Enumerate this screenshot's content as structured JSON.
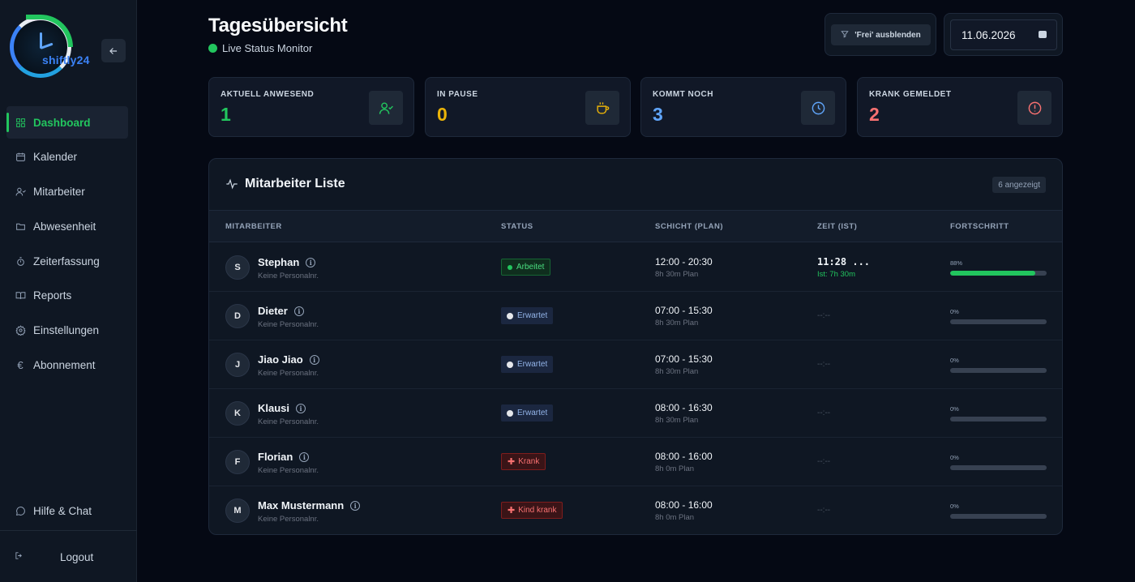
{
  "app": {
    "logo_text": "shiftly24",
    "collapse_icon": "arrow-left-icon"
  },
  "sidebar": {
    "items": [
      {
        "label": "Dashboard",
        "icon": "grid-icon",
        "active": true
      },
      {
        "label": "Kalender",
        "icon": "calendar-icon",
        "active": false
      },
      {
        "label": "Mitarbeiter",
        "icon": "users-icon",
        "active": false
      },
      {
        "label": "Abwesenheit",
        "icon": "folder-icon",
        "active": false
      },
      {
        "label": "Zeiterfassung",
        "icon": "stopwatch-icon",
        "active": false
      },
      {
        "label": "Reports",
        "icon": "book-icon",
        "active": false
      },
      {
        "label": "Einstellungen",
        "icon": "gear-icon",
        "active": false
      },
      {
        "label": "Abonnement",
        "icon": "euro-icon",
        "active": false
      }
    ],
    "help": {
      "label": "Hilfe & Chat",
      "icon": "chat-icon"
    },
    "logout": {
      "label": "Logout",
      "icon": "logout-icon"
    }
  },
  "header": {
    "title": "Tagesübersicht",
    "subtitle": "Live Status Monitor",
    "filter_label": "'Frei' ausblenden",
    "date_value": "11.06.2026"
  },
  "stats": [
    {
      "label": "AKTUELL ANWESEND",
      "value": "1",
      "color": "#22c55e",
      "icon": "user-check-icon"
    },
    {
      "label": "IN PAUSE",
      "value": "0",
      "color": "#eab308",
      "icon": "coffee-icon"
    },
    {
      "label": "KOMMT NOCH",
      "value": "3",
      "color": "#60a5fa",
      "icon": "clock-icon"
    },
    {
      "label": "KRANK GEMELDET",
      "value": "2",
      "color": "#f87171",
      "icon": "alert-circle-icon"
    }
  ],
  "table": {
    "title": "Mitarbeiter Liste",
    "count_badge": "6 angezeigt",
    "columns": [
      "MITARBEITER",
      "STATUS",
      "SCHICHT (PLAN)",
      "ZEIT (IST)",
      "FORTSCHRITT"
    ],
    "rows": [
      {
        "initial": "S",
        "name": "Stephan",
        "personal_nr": "Keine Personalnr.",
        "status": "Arbeitet",
        "status_type": "working",
        "shift": "12:00 - 20:30",
        "plan": "8h 30m Plan",
        "time": "11:28 ...",
        "time_sub": "Ist: 7h 30m",
        "progress_label": "88%",
        "progress": 88
      },
      {
        "initial": "D",
        "name": "Dieter",
        "personal_nr": "Keine Personalnr.",
        "status": "Erwartet",
        "status_type": "expected",
        "shift": "07:00 - 15:30",
        "plan": "8h 30m Plan",
        "time": "--:--",
        "time_sub": "",
        "progress_label": "0%",
        "progress": 0
      },
      {
        "initial": "J",
        "name": "Jiao Jiao",
        "personal_nr": "Keine Personalnr.",
        "status": "Erwartet",
        "status_type": "expected",
        "shift": "07:00 - 15:30",
        "plan": "8h 30m Plan",
        "time": "--:--",
        "time_sub": "",
        "progress_label": "0%",
        "progress": 0
      },
      {
        "initial": "K",
        "name": "Klausi",
        "personal_nr": "Keine Personalnr.",
        "status": "Erwartet",
        "status_type": "expected",
        "shift": "08:00 - 16:30",
        "plan": "8h 30m Plan",
        "time": "--:--",
        "time_sub": "",
        "progress_label": "0%",
        "progress": 0
      },
      {
        "initial": "F",
        "name": "Florian",
        "personal_nr": "Keine Personalnr.",
        "status": "Krank",
        "status_type": "sick",
        "shift": "08:00 - 16:00",
        "plan": "8h 0m Plan",
        "time": "--:--",
        "time_sub": "",
        "progress_label": "0%",
        "progress": 0
      },
      {
        "initial": "M",
        "name": "Max Mustermann",
        "personal_nr": "Keine Personalnr.",
        "status": "Kind krank",
        "status_type": "sick",
        "shift": "08:00 - 16:00",
        "plan": "8h 0m Plan",
        "time": "--:--",
        "time_sub": "",
        "progress_label": "0%",
        "progress": 0
      }
    ]
  }
}
